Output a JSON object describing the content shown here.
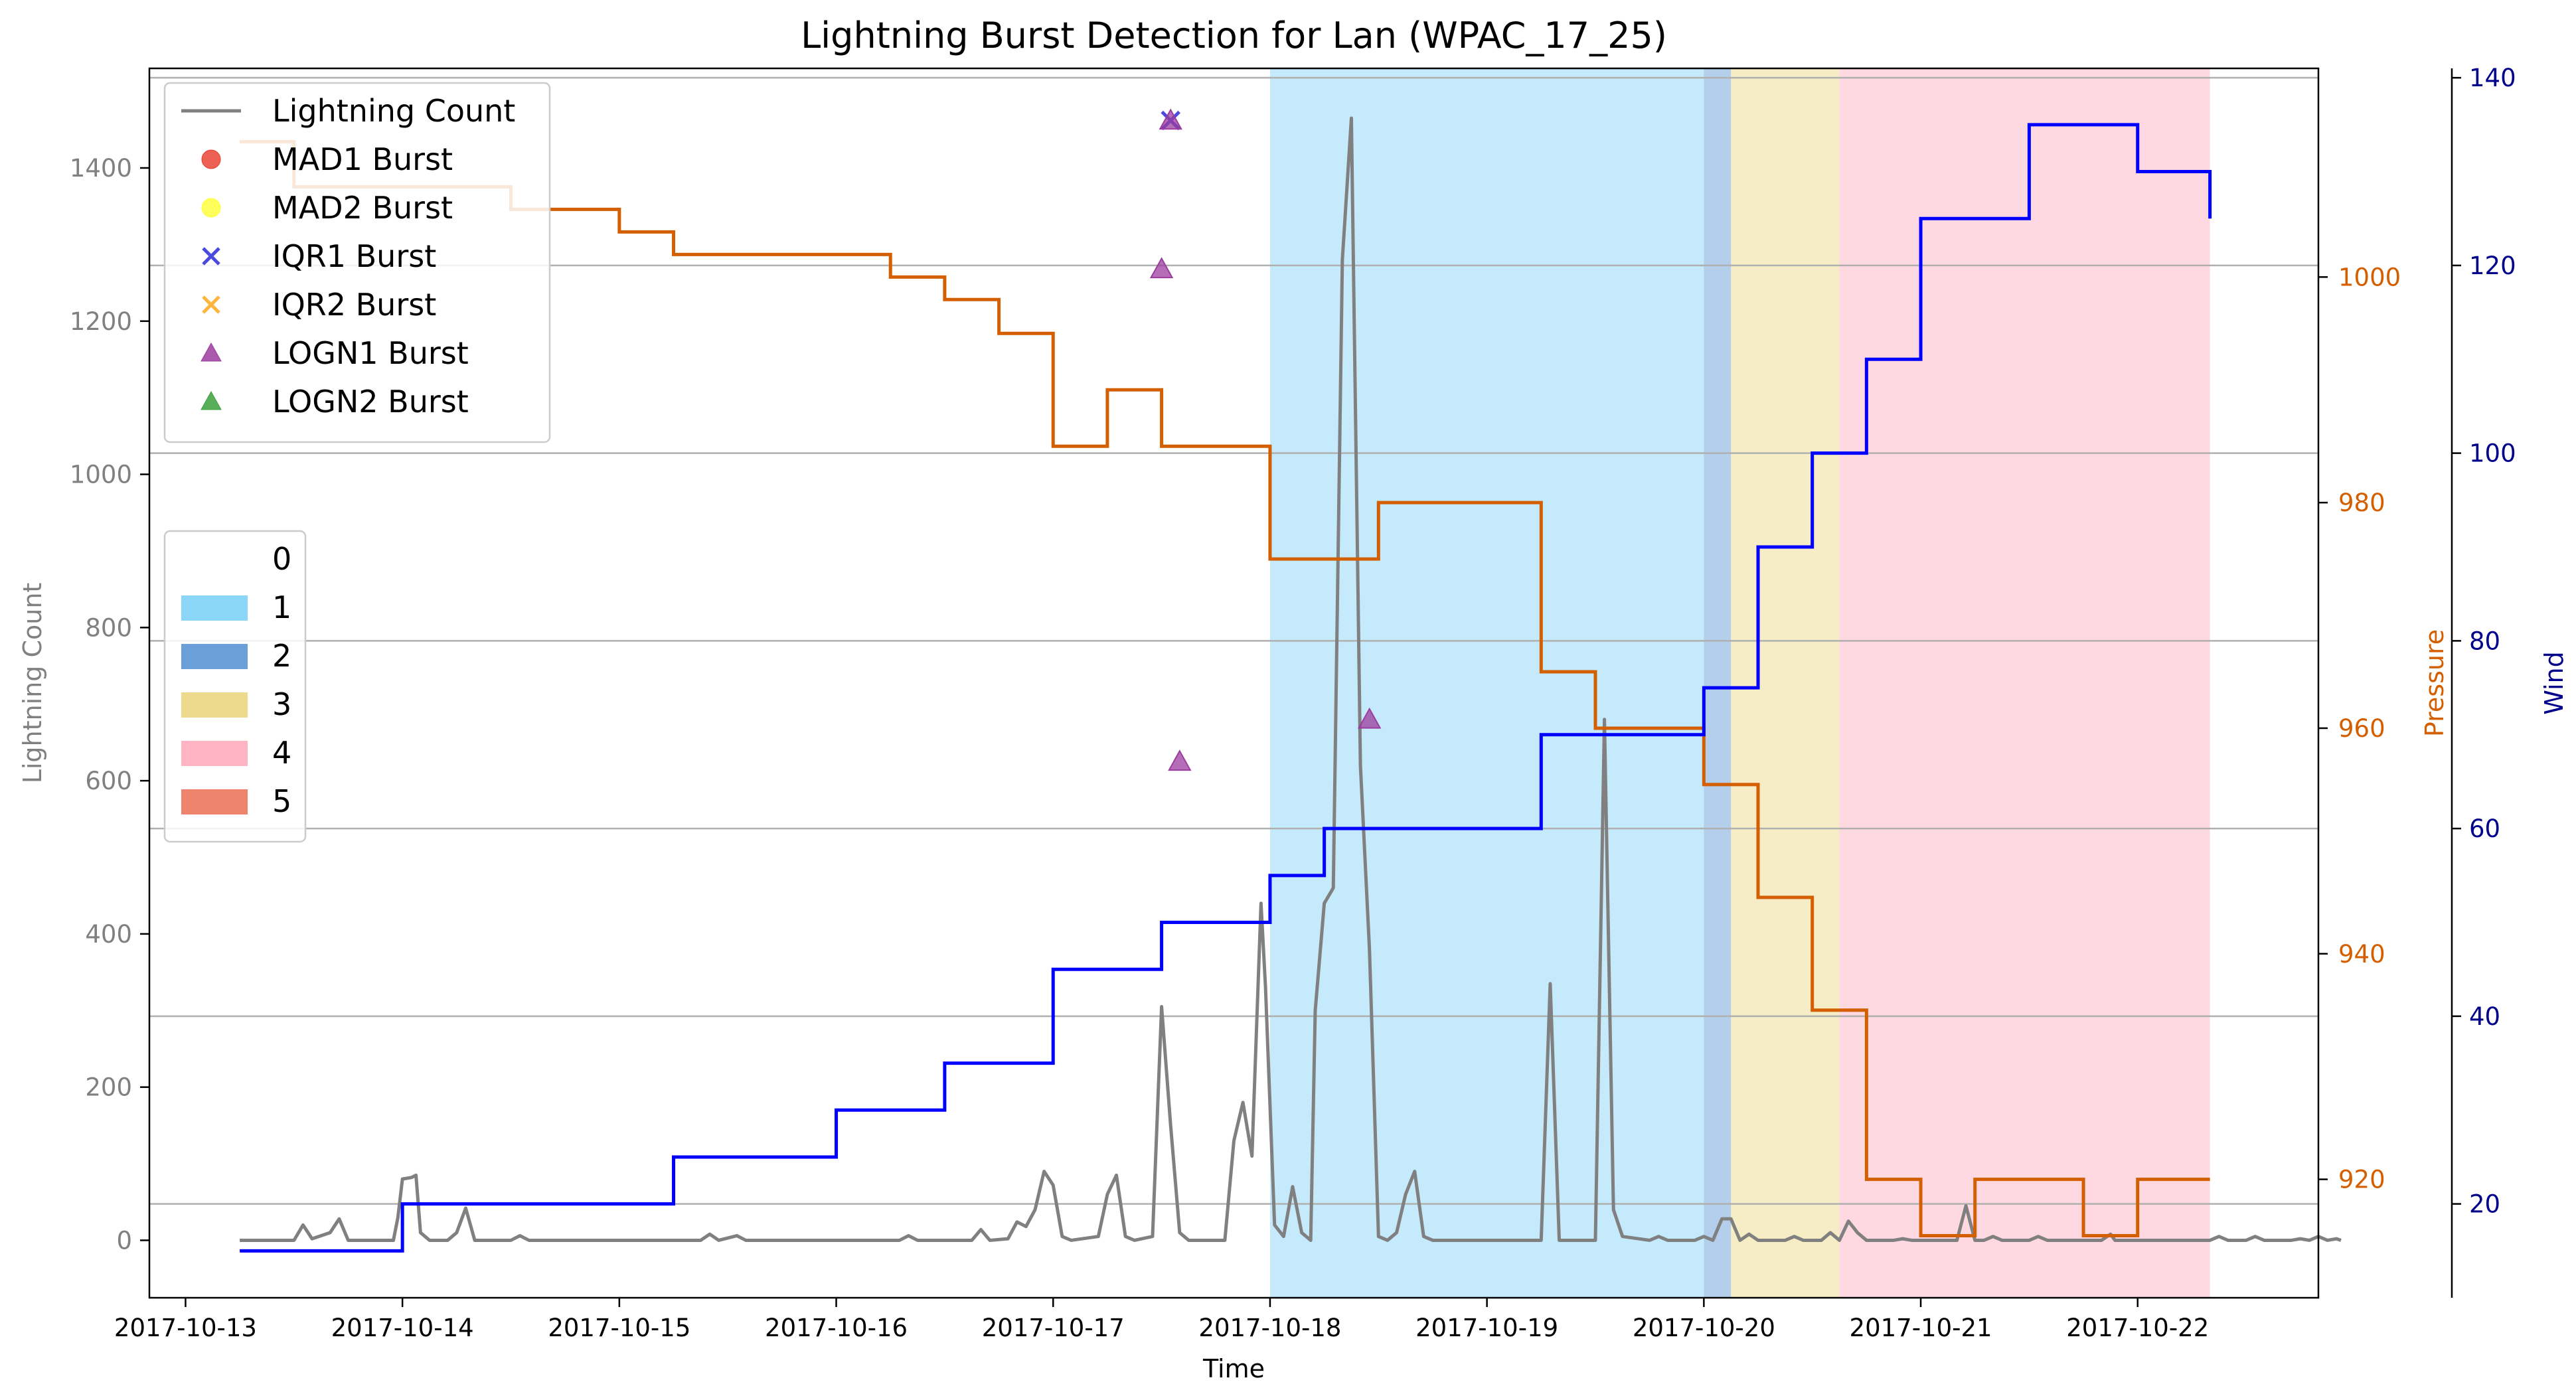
{
  "chart_data": {
    "type": "line",
    "title": "Lightning Burst Detection for Lan (WPAC_17_25)",
    "xlabel": "Time",
    "ylabel_left": "Lightning Count",
    "ylabel_pressure": "Pressure",
    "ylabel_wind": "Wind",
    "xlim": [
      "2017-10-12T20:00",
      "2017-10-22T20:00"
    ],
    "xticks": [
      "2017-10-13",
      "2017-10-14",
      "2017-10-15",
      "2017-10-16",
      "2017-10-17",
      "2017-10-18",
      "2017-10-19",
      "2017-10-20",
      "2017-10-21",
      "2017-10-22"
    ],
    "ylim_left": [
      -75,
      1530
    ],
    "yticks_left": [
      0,
      200,
      400,
      600,
      800,
      1000,
      1200,
      1400
    ],
    "ylim_pressure": [
      909.5,
      1018.5
    ],
    "yticks_pressure": [
      920,
      940,
      960,
      980,
      1000
    ],
    "ylim_wind": [
      10,
      141
    ],
    "yticks_wind": [
      20,
      40,
      60,
      80,
      100,
      120,
      140
    ],
    "grid": "horizontal lines at wind ticks",
    "colors": {
      "lightning": "#808080",
      "pressure": "#d45f00",
      "wind": "#0000ff",
      "mad1": "#e8392a",
      "mad2": "#ffff33",
      "iqr1": "#4a4adf",
      "iqr2": "#ffb43c",
      "logn1": "#9b3c9e",
      "logn2": "#3ca03c",
      "cat1": "#8bd6f7",
      "cat2": "#6a9fd9",
      "cat3": "#eeda8c",
      "cat4": "#ffb3c3",
      "cat5": "#ee846b"
    },
    "legend_top": {
      "position": "upper-left",
      "entries": [
        {
          "label": "Lightning Count",
          "kind": "line",
          "color": "#808080"
        },
        {
          "label": "MAD1 Burst",
          "kind": "circle",
          "color": "#e8392a"
        },
        {
          "label": "MAD2 Burst",
          "kind": "circle",
          "color": "#ffff33"
        },
        {
          "label": "IQR1 Burst",
          "kind": "x",
          "color": "#4a4adf"
        },
        {
          "label": "IQR2 Burst",
          "kind": "x",
          "color": "#ffb43c"
        },
        {
          "label": "LOGN1 Burst",
          "kind": "triangle",
          "color": "#9b3c9e"
        },
        {
          "label": "LOGN2 Burst",
          "kind": "triangle",
          "color": "#3ca03c"
        }
      ]
    },
    "legend_categories": {
      "position": "center-left",
      "entries": [
        {
          "label": "0",
          "color": "#ffffff"
        },
        {
          "label": "1",
          "color": "#8bd6f7"
        },
        {
          "label": "2",
          "color": "#6a9fd9"
        },
        {
          "label": "3",
          "color": "#eeda8c"
        },
        {
          "label": "4",
          "color": "#ffb3c3"
        },
        {
          "label": "5",
          "color": "#ee846b"
        }
      ]
    },
    "category_spans": [
      {
        "category": "1",
        "start": "2017-10-18T00:00",
        "end": "2017-10-20T00:00"
      },
      {
        "category": "2",
        "start": "2017-10-20T00:00",
        "end": "2017-10-20T03:00"
      },
      {
        "category": "3",
        "start": "2017-10-20T03:00",
        "end": "2017-10-20T15:00"
      },
      {
        "category": "4",
        "start": "2017-10-20T15:00",
        "end": "2017-10-22T08:00"
      }
    ],
    "series": [
      {
        "name": "Lightning Count",
        "axis": "left",
        "points": [
          [
            "2017-10-13T06:00",
            0
          ],
          [
            "2017-10-13T12:00",
            0
          ],
          [
            "2017-10-13T13:00",
            20
          ],
          [
            "2017-10-13T14:00",
            2
          ],
          [
            "2017-10-13T16:00",
            10
          ],
          [
            "2017-10-13T17:00",
            28
          ],
          [
            "2017-10-13T18:00",
            0
          ],
          [
            "2017-10-13T23:00",
            0
          ],
          [
            "2017-10-13T23:30",
            30
          ],
          [
            "2017-10-14T00:00",
            80
          ],
          [
            "2017-10-14T01:00",
            82
          ],
          [
            "2017-10-14T01:30",
            85
          ],
          [
            "2017-10-14T02:00",
            10
          ],
          [
            "2017-10-14T03:00",
            0
          ],
          [
            "2017-10-14T05:00",
            0
          ],
          [
            "2017-10-14T06:00",
            10
          ],
          [
            "2017-10-14T07:00",
            42
          ],
          [
            "2017-10-14T08:00",
            0
          ],
          [
            "2017-10-14T12:00",
            0
          ],
          [
            "2017-10-14T13:00",
            6
          ],
          [
            "2017-10-14T14:00",
            0
          ],
          [
            "2017-10-15T09:00",
            0
          ],
          [
            "2017-10-15T10:00",
            8
          ],
          [
            "2017-10-15T11:00",
            0
          ],
          [
            "2017-10-15T13:00",
            6
          ],
          [
            "2017-10-15T14:00",
            0
          ],
          [
            "2017-10-16T07:00",
            0
          ],
          [
            "2017-10-16T08:00",
            6
          ],
          [
            "2017-10-16T09:00",
            0
          ],
          [
            "2017-10-16T15:00",
            0
          ],
          [
            "2017-10-16T16:00",
            14
          ],
          [
            "2017-10-16T17:00",
            0
          ],
          [
            "2017-10-16T19:00",
            2
          ],
          [
            "2017-10-16T20:00",
            24
          ],
          [
            "2017-10-16T21:00",
            18
          ],
          [
            "2017-10-16T22:00",
            40
          ],
          [
            "2017-10-16T23:00",
            90
          ],
          [
            "2017-10-17T00:00",
            72
          ],
          [
            "2017-10-17T01:00",
            5
          ],
          [
            "2017-10-17T02:00",
            0
          ],
          [
            "2017-10-17T05:00",
            5
          ],
          [
            "2017-10-17T06:00",
            60
          ],
          [
            "2017-10-17T07:00",
            85
          ],
          [
            "2017-10-17T08:00",
            5
          ],
          [
            "2017-10-17T09:00",
            0
          ],
          [
            "2017-10-17T11:00",
            5
          ],
          [
            "2017-10-17T12:00",
            305
          ],
          [
            "2017-10-17T13:00",
            150
          ],
          [
            "2017-10-17T14:00",
            10
          ],
          [
            "2017-10-17T15:00",
            0
          ],
          [
            "2017-10-17T19:00",
            0
          ],
          [
            "2017-10-17T20:00",
            130
          ],
          [
            "2017-10-17T21:00",
            180
          ],
          [
            "2017-10-17T22:00",
            110
          ],
          [
            "2017-10-17T23:00",
            440
          ],
          [
            "2017-10-17T23:30",
            330
          ],
          [
            "2017-10-18T00:30",
            20
          ],
          [
            "2017-10-18T01:30",
            5
          ],
          [
            "2017-10-18T02:30",
            70
          ],
          [
            "2017-10-18T03:30",
            10
          ],
          [
            "2017-10-18T04:30",
            0
          ],
          [
            "2017-10-18T05:00",
            300
          ],
          [
            "2017-10-18T06:00",
            440
          ],
          [
            "2017-10-18T07:00",
            460
          ],
          [
            "2017-10-18T08:00",
            1280
          ],
          [
            "2017-10-18T09:00",
            1465
          ],
          [
            "2017-10-18T10:00",
            620
          ],
          [
            "2017-10-18T11:00",
            380
          ],
          [
            "2017-10-18T12:00",
            5
          ],
          [
            "2017-10-18T13:00",
            0
          ],
          [
            "2017-10-18T14:00",
            10
          ],
          [
            "2017-10-18T15:00",
            60
          ],
          [
            "2017-10-18T16:00",
            90
          ],
          [
            "2017-10-18T17:00",
            5
          ],
          [
            "2017-10-18T18:00",
            0
          ],
          [
            "2017-10-18T23:00",
            0
          ],
          [
            "2017-10-19T02:00",
            0
          ],
          [
            "2017-10-19T06:00",
            0
          ],
          [
            "2017-10-19T07:00",
            335
          ],
          [
            "2017-10-19T08:00",
            0
          ],
          [
            "2017-10-19T12:00",
            0
          ],
          [
            "2017-10-19T13:00",
            680
          ],
          [
            "2017-10-19T14:00",
            40
          ],
          [
            "2017-10-19T15:00",
            5
          ],
          [
            "2017-10-19T18:00",
            0
          ],
          [
            "2017-10-19T19:00",
            5
          ],
          [
            "2017-10-19T20:00",
            0
          ],
          [
            "2017-10-19T23:00",
            0
          ],
          [
            "2017-10-20T00:00",
            5
          ],
          [
            "2017-10-20T01:00",
            0
          ],
          [
            "2017-10-20T02:00",
            28
          ],
          [
            "2017-10-20T03:00",
            28
          ],
          [
            "2017-10-20T04:00",
            0
          ],
          [
            "2017-10-20T05:00",
            8
          ],
          [
            "2017-10-20T06:00",
            0
          ],
          [
            "2017-10-20T09:00",
            0
          ],
          [
            "2017-10-20T10:00",
            5
          ],
          [
            "2017-10-20T11:00",
            0
          ],
          [
            "2017-10-20T13:00",
            0
          ],
          [
            "2017-10-20T14:00",
            10
          ],
          [
            "2017-10-20T15:00",
            0
          ],
          [
            "2017-10-20T16:00",
            25
          ],
          [
            "2017-10-20T17:00",
            10
          ],
          [
            "2017-10-20T18:00",
            0
          ],
          [
            "2017-10-20T21:00",
            0
          ],
          [
            "2017-10-20T22:00",
            2
          ],
          [
            "2017-10-20T23:00",
            0
          ],
          [
            "2017-10-21T04:00",
            0
          ],
          [
            "2017-10-21T05:00",
            45
          ],
          [
            "2017-10-21T06:00",
            0
          ],
          [
            "2017-10-21T07:00",
            0
          ],
          [
            "2017-10-21T08:00",
            5
          ],
          [
            "2017-10-21T09:00",
            0
          ],
          [
            "2017-10-21T12:00",
            0
          ],
          [
            "2017-10-21T13:00",
            5
          ],
          [
            "2017-10-21T14:00",
            0
          ],
          [
            "2017-10-21T20:00",
            0
          ],
          [
            "2017-10-21T21:00",
            8
          ],
          [
            "2017-10-21T22:00",
            0
          ],
          [
            "2017-10-22T08:00",
            0
          ],
          [
            "2017-10-22T09:00",
            5
          ],
          [
            "2017-10-22T10:00",
            0
          ],
          [
            "2017-10-22T12:00",
            0
          ],
          [
            "2017-10-22T13:00",
            5
          ],
          [
            "2017-10-22T14:00",
            0
          ],
          [
            "2017-10-22T17:00",
            0
          ],
          [
            "2017-10-22T18:00",
            2
          ],
          [
            "2017-10-22T19:00",
            0
          ],
          [
            "2017-10-22T20:00",
            5
          ],
          [
            "2017-10-22T21:00",
            0
          ],
          [
            "2017-10-22T22:00",
            2
          ],
          [
            "2017-10-22T22:30",
            0
          ],
          [
            "2017-10-22T00:00",
            0
          ],
          [
            "2017-10-21T21:30",
            0
          ]
        ]
      },
      {
        "name": "Pressure",
        "axis": "pressure",
        "steps": [
          [
            "2017-10-13T06:00",
            1012
          ],
          [
            "2017-10-13T12:00",
            1008
          ],
          [
            "2017-10-14T00:00",
            1008
          ],
          [
            "2017-10-14T06:00",
            1008
          ],
          [
            "2017-10-14T12:00",
            1006
          ],
          [
            "2017-10-15T00:00",
            1004
          ],
          [
            "2017-10-15T06:00",
            1002
          ],
          [
            "2017-10-15T12:00",
            1002
          ],
          [
            "2017-10-16T00:00",
            1002
          ],
          [
            "2017-10-16T06:00",
            1000
          ],
          [
            "2017-10-16T12:00",
            998
          ],
          [
            "2017-10-16T18:00",
            995
          ],
          [
            "2017-10-17T00:00",
            985
          ],
          [
            "2017-10-17T06:00",
            990
          ],
          [
            "2017-10-17T12:00",
            985
          ],
          [
            "2017-10-17T18:00",
            985
          ],
          [
            "2017-10-18T00:00",
            975
          ],
          [
            "2017-10-18T06:00",
            975
          ],
          [
            "2017-10-18T12:00",
            980
          ],
          [
            "2017-10-18T18:00",
            980
          ],
          [
            "2017-10-19T00:00",
            980
          ],
          [
            "2017-10-19T06:00",
            965
          ],
          [
            "2017-10-19T12:00",
            960
          ],
          [
            "2017-10-20T00:00",
            955
          ],
          [
            "2017-10-20T06:00",
            945
          ],
          [
            "2017-10-20T12:00",
            935
          ],
          [
            "2017-10-20T18:00",
            920
          ],
          [
            "2017-10-21T00:00",
            915
          ],
          [
            "2017-10-21T06:00",
            920
          ],
          [
            "2017-10-21T12:00",
            920
          ],
          [
            "2017-10-21T18:00",
            915
          ],
          [
            "2017-10-22T00:00",
            920
          ],
          [
            "2017-10-22T08:00",
            920
          ]
        ]
      },
      {
        "name": "Wind",
        "axis": "wind",
        "steps": [
          [
            "2017-10-13T06:00",
            15
          ],
          [
            "2017-10-14T00:00",
            20
          ],
          [
            "2017-10-15T06:00",
            25
          ],
          [
            "2017-10-15T12:00",
            25
          ],
          [
            "2017-10-16T00:00",
            30
          ],
          [
            "2017-10-16T12:00",
            35
          ],
          [
            "2017-10-17T00:00",
            45
          ],
          [
            "2017-10-17T12:00",
            50
          ],
          [
            "2017-10-18T00:00",
            55
          ],
          [
            "2017-10-18T06:00",
            60
          ],
          [
            "2017-10-18T12:00",
            60
          ],
          [
            "2017-10-19T00:00",
            60
          ],
          [
            "2017-10-19T06:00",
            70
          ],
          [
            "2017-10-19T18:00",
            70
          ],
          [
            "2017-10-20T00:00",
            75
          ],
          [
            "2017-10-20T06:00",
            90
          ],
          [
            "2017-10-20T12:00",
            100
          ],
          [
            "2017-10-20T18:00",
            110
          ],
          [
            "2017-10-21T00:00",
            125
          ],
          [
            "2017-10-21T12:00",
            135
          ],
          [
            "2017-10-22T00:00",
            130
          ],
          [
            "2017-10-22T08:00",
            125
          ]
        ]
      }
    ],
    "bursts": [
      {
        "type": "IQR1",
        "kind": "x",
        "time": "2017-10-17T13:00",
        "count": 1462
      },
      {
        "type": "LOGN1",
        "kind": "triangle",
        "time": "2017-10-17T13:00",
        "count": 1462
      },
      {
        "type": "LOGN1",
        "kind": "triangle",
        "time": "2017-10-17T12:00",
        "count": 1268
      },
      {
        "type": "LOGN1",
        "kind": "triangle",
        "time": "2017-10-17T14:00",
        "count": 625
      },
      {
        "type": "LOGN1",
        "kind": "triangle",
        "time": "2017-10-18T11:00",
        "count": 680
      }
    ]
  }
}
